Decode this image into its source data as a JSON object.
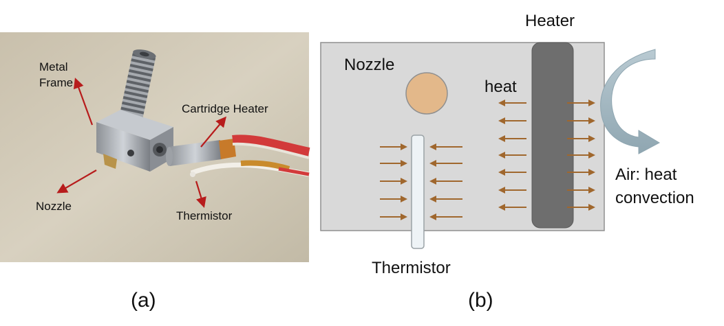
{
  "panel_a": {
    "labels": {
      "metal_frame_line1": "Metal",
      "metal_frame_line2": "Frame",
      "cartridge_heater": "Cartridge Heater",
      "nozzle": "Nozzle",
      "thermistor": "Thermistor"
    },
    "caption": "(a)",
    "annotation_color": "#b71c1c"
  },
  "panel_b": {
    "labels": {
      "heater": "Heater",
      "nozzle": "Nozzle",
      "heat": "heat",
      "thermistor": "Thermistor",
      "air_line1": "Air: heat",
      "air_line2": "convection"
    },
    "caption": "(b)",
    "colors": {
      "block": "#d9d9d9",
      "heater": "#6e6e6e",
      "nozzle": "#e3b88a",
      "arrow": "#a0672d",
      "thermistor": "#eef3f6",
      "convection": "#a9bcc5"
    }
  }
}
